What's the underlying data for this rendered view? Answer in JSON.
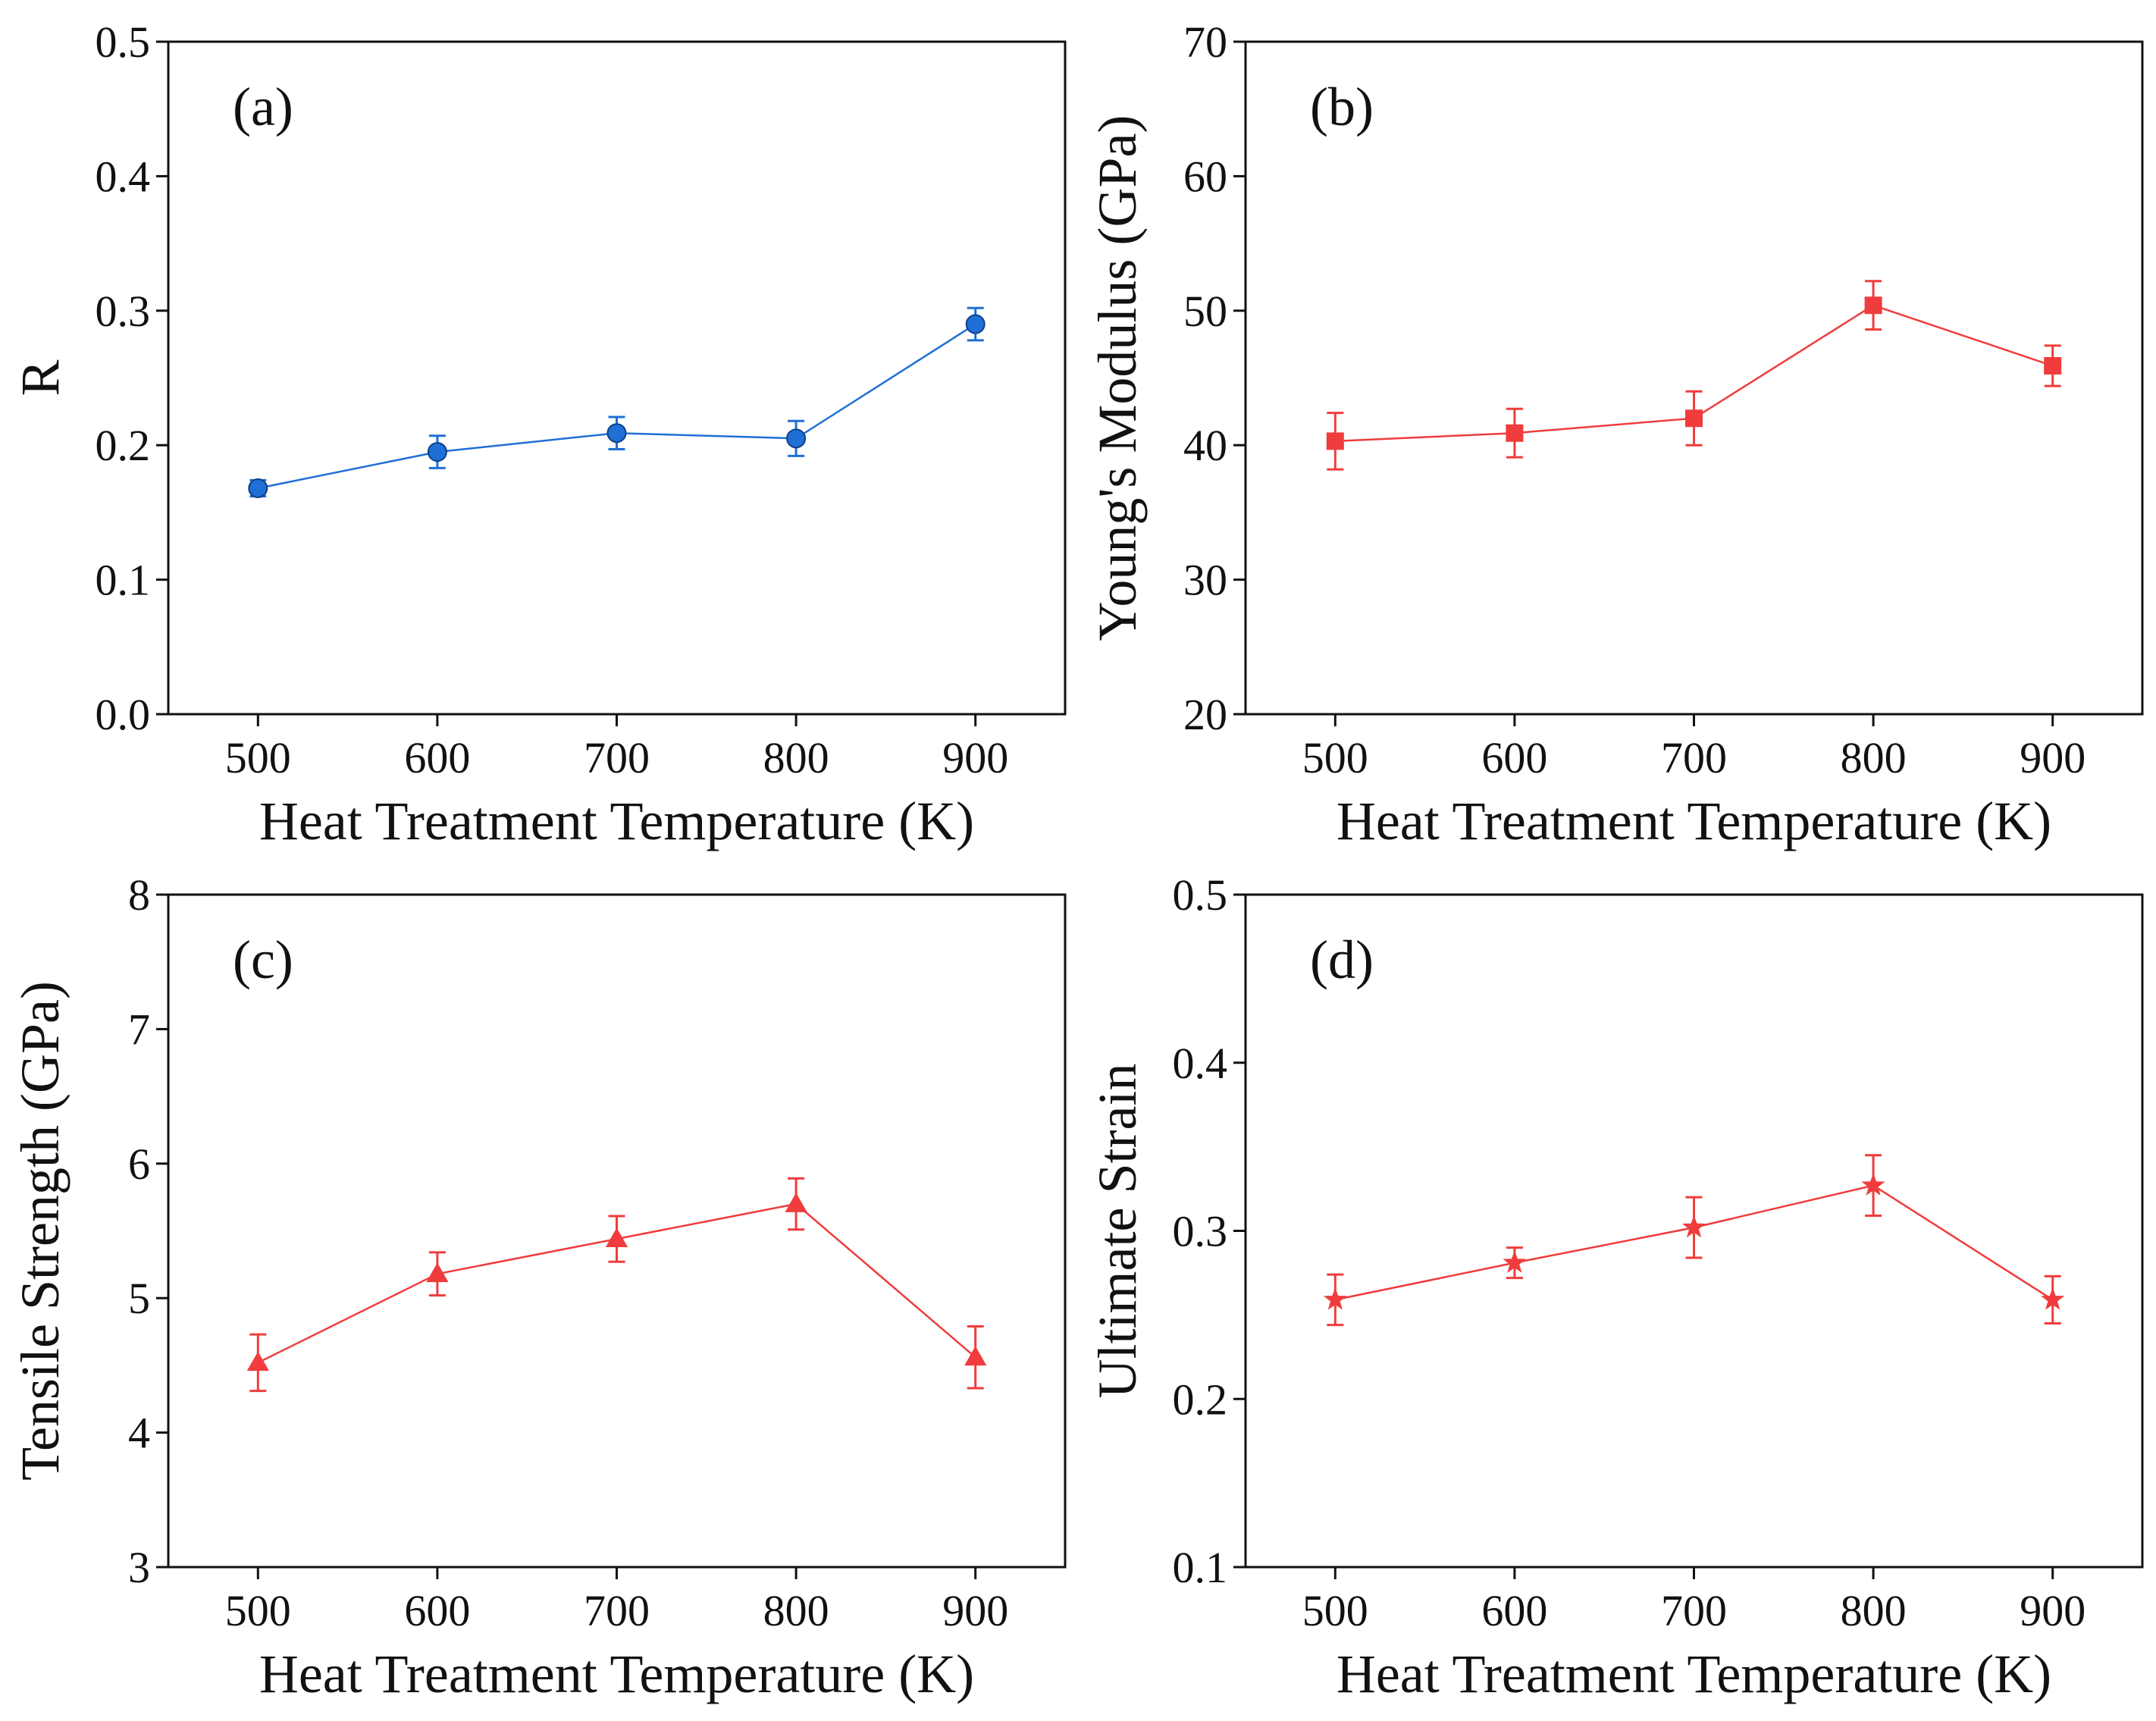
{
  "chart_data": [
    {
      "type": "line",
      "panel_label": "(a)",
      "marker": "circle",
      "color": "#1f6fd6",
      "xlabel": "Heat Treatment Temperature (K)",
      "ylabel": "R",
      "xlim": [
        450,
        950
      ],
      "ylim": [
        0.0,
        0.5
      ],
      "x_ticks": [
        500,
        600,
        700,
        800,
        900
      ],
      "y_ticks": [
        0.0,
        0.1,
        0.2,
        0.3,
        0.4,
        0.5
      ],
      "y_tick_labels": [
        "0.0",
        "0.1",
        "0.2",
        "0.3",
        "0.4",
        "0.5"
      ],
      "series": [
        {
          "name": "R",
          "x": [
            500,
            600,
            700,
            800,
            900
          ],
          "values": [
            0.168,
            0.195,
            0.209,
            0.205,
            0.29
          ],
          "errors": [
            0.006,
            0.012,
            0.012,
            0.013,
            0.012
          ]
        }
      ]
    },
    {
      "type": "line",
      "panel_label": "(b)",
      "marker": "square",
      "color": "#f03c3c",
      "xlabel": "Heat Treatment Temperature (K)",
      "ylabel": "Young's Modulus (GPa)",
      "xlim": [
        450,
        950
      ],
      "ylim": [
        20,
        70
      ],
      "x_ticks": [
        500,
        600,
        700,
        800,
        900
      ],
      "y_ticks": [
        20,
        30,
        40,
        50,
        60,
        70
      ],
      "y_tick_labels": [
        "20",
        "30",
        "40",
        "50",
        "60",
        "70"
      ],
      "series": [
        {
          "name": "Young's Modulus",
          "x": [
            500,
            600,
            700,
            800,
            900
          ],
          "values": [
            40.3,
            40.9,
            42.0,
            50.4,
            45.9
          ],
          "errors": [
            2.1,
            1.8,
            2.0,
            1.8,
            1.5
          ]
        }
      ]
    },
    {
      "type": "line",
      "panel_label": "(c)",
      "marker": "triangle",
      "color": "#f03c3c",
      "xlabel": "Heat Treatment Temperature (K)",
      "ylabel": "Tensile Strength (GPa)",
      "xlim": [
        450,
        950
      ],
      "ylim": [
        3,
        8
      ],
      "x_ticks": [
        500,
        600,
        700,
        800,
        900
      ],
      "y_ticks": [
        3,
        4,
        5,
        6,
        7,
        8
      ],
      "y_tick_labels": [
        "3",
        "4",
        "5",
        "6",
        "7",
        "8"
      ],
      "series": [
        {
          "name": "Tensile Strength",
          "x": [
            500,
            600,
            700,
            800,
            900
          ],
          "values": [
            4.52,
            5.18,
            5.44,
            5.7,
            4.56
          ],
          "errors": [
            0.21,
            0.16,
            0.17,
            0.19,
            0.23
          ]
        }
      ]
    },
    {
      "type": "line",
      "panel_label": "(d)",
      "marker": "star",
      "color": "#f03c3c",
      "xlabel": "Heat Treatment Temperature (K)",
      "ylabel": "Ultimate Strain",
      "xlim": [
        450,
        950
      ],
      "ylim": [
        0.1,
        0.5
      ],
      "x_ticks": [
        500,
        600,
        700,
        800,
        900
      ],
      "y_ticks": [
        0.1,
        0.2,
        0.3,
        0.4,
        0.5
      ],
      "y_tick_labels": [
        "0.1",
        "0.2",
        "0.3",
        "0.4",
        "0.5"
      ],
      "series": [
        {
          "name": "Ultimate Strain",
          "x": [
            500,
            600,
            700,
            800,
            900
          ],
          "values": [
            0.259,
            0.281,
            0.302,
            0.327,
            0.259
          ],
          "errors": [
            0.015,
            0.009,
            0.018,
            0.018,
            0.014
          ]
        }
      ]
    }
  ]
}
